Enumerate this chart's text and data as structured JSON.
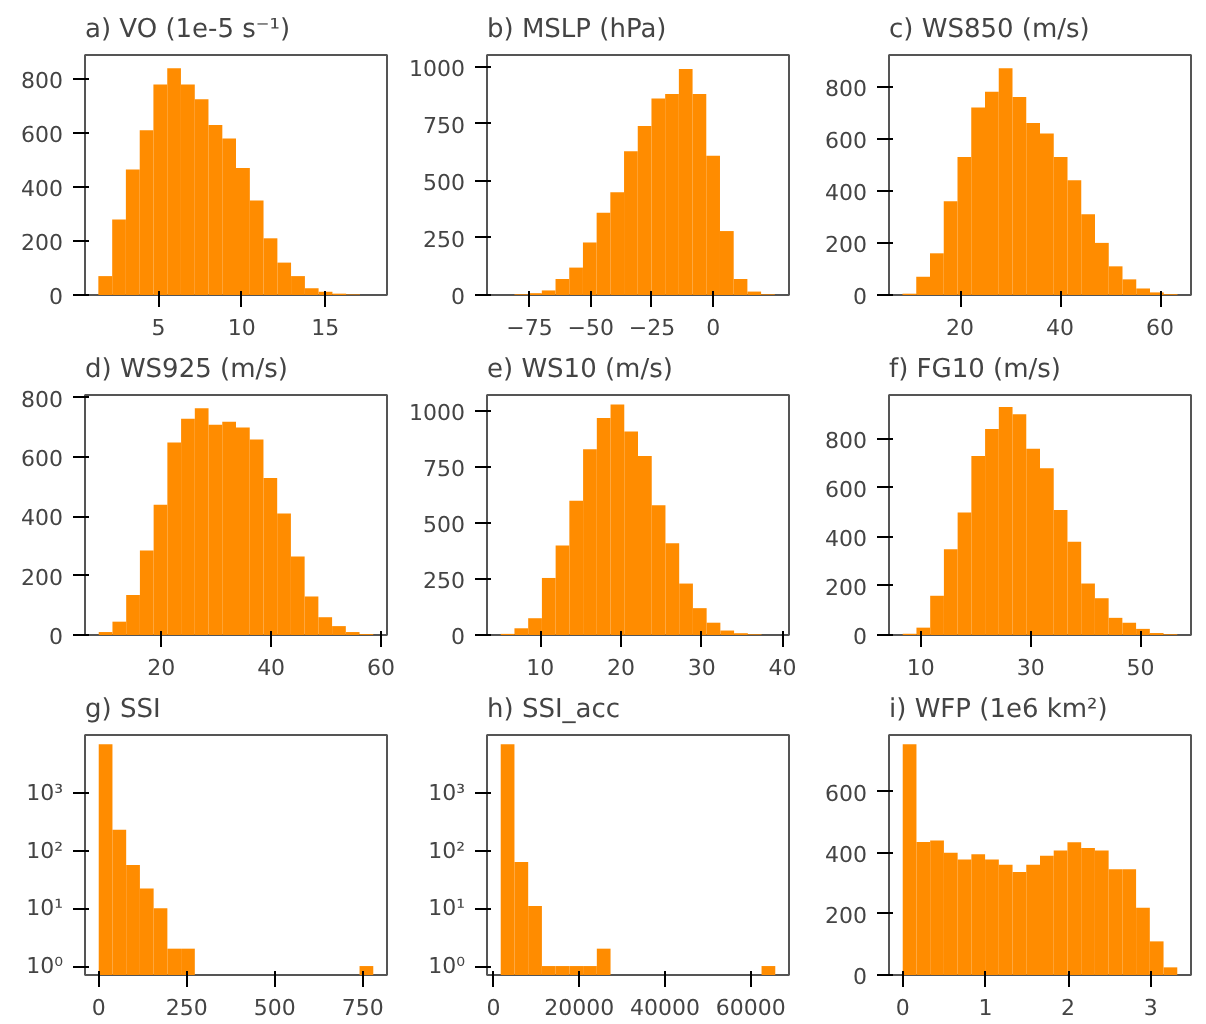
{
  "chart_data": [
    {
      "type": "histogram",
      "title": "a) VO (1e-5 s⁻¹)",
      "color": "#ff8c00",
      "bins": [
        1.4,
        2.23,
        3.05,
        3.88,
        4.7,
        5.53,
        6.35,
        7.18,
        8.0,
        8.83,
        9.65,
        10.48,
        11.3,
        12.13,
        12.95,
        13.78,
        14.6,
        15.43,
        16.25,
        17.08,
        17.9
      ],
      "values": [
        70,
        280,
        465,
        610,
        780,
        840,
        780,
        725,
        630,
        580,
        470,
        350,
        210,
        120,
        70,
        25,
        12,
        5,
        2,
        null
      ],
      "xlim": [
        0.6,
        18.7
      ],
      "ylim": [
        0,
        889
      ],
      "xticks": [
        5,
        10,
        15
      ],
      "yticks": [
        0,
        200,
        400,
        600,
        800
      ]
    },
    {
      "type": "histogram",
      "title": "b) MSLP (hPa)",
      "color": "#ff8c00",
      "bins": [
        -86.8,
        -81.2,
        -75.6,
        -70,
        -64.4,
        -58.8,
        -53.2,
        -47.6,
        -42,
        -36.4,
        -30.8,
        -25.2,
        -19.6,
        -14,
        -8.4,
        -2.8,
        2.8,
        8.4,
        14,
        19.6,
        25.2
      ],
      "values": [
        null,
        3,
        8,
        20,
        70,
        120,
        230,
        360,
        450,
        630,
        740,
        860,
        880,
        990,
        880,
        610,
        280,
        70,
        15,
        3
      ],
      "xlim": [
        -92.4,
        31
      ],
      "ylim": [
        0,
        1051
      ],
      "xticks": [
        {
          "value": -75,
          "label": "−75"
        },
        {
          "value": -50,
          "label": "−50"
        },
        {
          "value": -25,
          "label": "−25"
        },
        0
      ],
      "yticks": [
        0,
        250,
        500,
        750,
        1000
      ]
    },
    {
      "type": "histogram",
      "title": "c) WS850 (m/s)",
      "color": "#ff8c00",
      "bins": [
        8.5,
        11.25,
        14,
        16.75,
        19.5,
        22.25,
        25,
        27.75,
        30.5,
        33.25,
        36,
        38.75,
        41.5,
        44.25,
        47,
        49.75,
        52.5,
        55.25,
        58,
        60.75,
        63.5
      ],
      "values": [
        5,
        70,
        160,
        360,
        530,
        720,
        780,
        870,
        760,
        660,
        620,
        530,
        440,
        310,
        200,
        110,
        60,
        25,
        10,
        3
      ],
      "xlim": [
        5.8,
        66.2
      ],
      "ylim": [
        0,
        921
      ],
      "xticks": [
        20,
        40,
        60
      ],
      "yticks": [
        0,
        200,
        400,
        600,
        800
      ]
    },
    {
      "type": "histogram",
      "title": "d) WS925 (m/s)",
      "color": "#ff8c00",
      "bins": [
        8.6,
        11.1,
        13.6,
        16.1,
        18.6,
        21.1,
        23.6,
        26.1,
        28.6,
        31.1,
        33.6,
        36.1,
        38.6,
        41.1,
        43.6,
        46.1,
        48.6,
        51.1,
        53.6,
        56.1,
        58.6
      ],
      "values": [
        10,
        45,
        135,
        285,
        440,
        650,
        730,
        765,
        710,
        720,
        700,
        660,
        530,
        410,
        265,
        130,
        60,
        30,
        10,
        3
      ],
      "xlim": [
        6.1,
        61.1
      ],
      "ylim": [
        0,
        810
      ],
      "xticks": [
        20,
        40,
        60
      ],
      "yticks": [
        0,
        200,
        400,
        600,
        800
      ]
    },
    {
      "type": "histogram",
      "title": "e) WS10 (m/s)",
      "color": "#ff8c00",
      "bins": [
        5.1,
        6.8,
        8.5,
        10.2,
        11.9,
        13.6,
        15.3,
        17,
        18.7,
        20.4,
        22.1,
        23.8,
        25.5,
        27.2,
        28.9,
        30.6,
        32.3,
        34,
        35.7,
        37.4,
        39.1
      ],
      "values": [
        5,
        30,
        75,
        255,
        400,
        600,
        830,
        970,
        1030,
        910,
        800,
        580,
        410,
        230,
        120,
        55,
        20,
        8,
        3,
        null
      ],
      "xlim": [
        3.4,
        40.8
      ],
      "ylim": [
        0,
        1073
      ],
      "xticks": [
        10,
        20,
        30,
        40
      ],
      "yticks": [
        0,
        250,
        500,
        750,
        1000
      ]
    },
    {
      "type": "histogram",
      "title": "f) FG10 (m/s)",
      "color": "#ff8c00",
      "bins": [
        6.7,
        9.2,
        11.7,
        14.2,
        16.7,
        19.2,
        21.7,
        24.2,
        26.7,
        29.2,
        31.7,
        34.2,
        36.7,
        39.2,
        41.7,
        44.2,
        46.7,
        49.2,
        51.7,
        54.2,
        56.7
      ],
      "values": [
        5,
        30,
        160,
        350,
        500,
        730,
        840,
        930,
        900,
        760,
        680,
        510,
        380,
        210,
        150,
        70,
        50,
        25,
        8,
        3
      ],
      "xlim": [
        4.2,
        59.2
      ],
      "ylim": [
        0,
        979
      ],
      "xticks": [
        10,
        30,
        50
      ],
      "yticks": [
        0,
        200,
        400,
        600,
        800
      ]
    },
    {
      "type": "histogram",
      "title": "g) SSI",
      "color": "#ff8c00",
      "log": true,
      "bins": [
        0,
        39,
        78,
        117,
        156,
        195,
        234,
        273,
        312,
        351,
        390,
        429,
        468,
        507,
        546,
        585,
        624,
        663,
        702,
        741,
        780
      ],
      "values": [
        6900,
        230,
        56,
        22,
        10,
        2,
        2,
        null,
        null,
        null,
        null,
        null,
        null,
        null,
        null,
        null,
        null,
        null,
        null,
        1
      ],
      "xlim": [
        -39,
        819
      ],
      "ylim": [
        0.7,
        10000
      ],
      "xticks": [
        0,
        250,
        500,
        750
      ],
      "yticks": [
        {
          "value": 1,
          "label": "10⁰"
        },
        {
          "value": 10,
          "label": "10¹"
        },
        {
          "value": 100,
          "label": "10²"
        },
        {
          "value": 1000,
          "label": "10³"
        }
      ]
    },
    {
      "type": "histogram",
      "title": "h) SSI_acc",
      "color": "#ff8c00",
      "log": true,
      "bins": [
        1700,
        4900,
        8100,
        11300,
        14500,
        17700,
        20900,
        24100,
        27300,
        30500,
        33700,
        36900,
        40100,
        43300,
        46500,
        49700,
        52900,
        56100,
        59300,
        62500,
        65700
      ],
      "values": [
        6900,
        63,
        11,
        1,
        1,
        1,
        1,
        2,
        null,
        null,
        null,
        null,
        null,
        null,
        null,
        null,
        null,
        null,
        null,
        1
      ],
      "xlim": [
        -1500,
        68900
      ],
      "ylim": [
        0.7,
        10000
      ],
      "xticks": [
        0,
        20000,
        40000,
        60000
      ],
      "yticks": [
        {
          "value": 1,
          "label": "10⁰"
        },
        {
          "value": 10,
          "label": "10¹"
        },
        {
          "value": 100,
          "label": "10²"
        },
        {
          "value": 1000,
          "label": "10³"
        }
      ]
    },
    {
      "type": "histogram",
      "title": "i) WFP (1e6 km²)",
      "color": "#ff8c00",
      "bins": [
        0,
        0.166,
        0.332,
        0.498,
        0.664,
        0.83,
        0.996,
        1.162,
        1.328,
        1.494,
        1.66,
        1.826,
        1.992,
        2.158,
        2.324,
        2.49,
        2.656,
        2.822,
        2.988,
        3.154,
        3.32
      ],
      "values": [
        755,
        435,
        440,
        400,
        378,
        395,
        378,
        361,
        337,
        361,
        390,
        407,
        434,
        415,
        407,
        346,
        346,
        220,
        110,
        25
      ],
      "xlim": [
        -0.166,
        3.486
      ],
      "ylim": [
        0,
        785
      ],
      "xticks": [
        0,
        1,
        2,
        3
      ],
      "yticks": [
        0,
        200,
        400,
        600
      ]
    }
  ]
}
